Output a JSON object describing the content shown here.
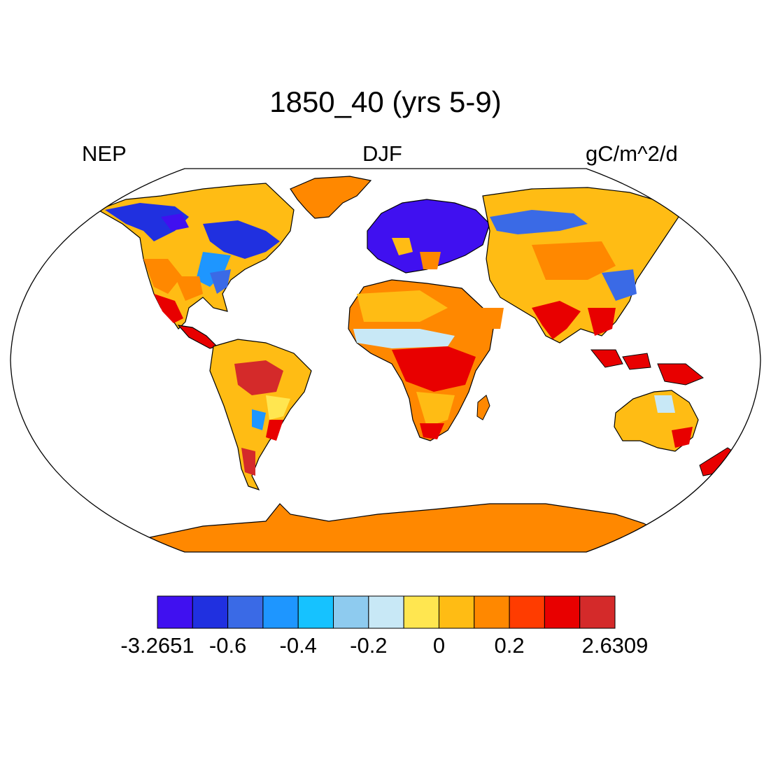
{
  "title": "1850_40 (yrs 5-9)",
  "left_string": "NEP",
  "center_string": "DJF",
  "right_string": "gC/m^2/d",
  "map": {
    "projection": "Robinson",
    "ocean_color": "#ffffff",
    "coastline_color": "#000000"
  },
  "colorbar": {
    "colors": [
      "#4010f0",
      "#2030e0",
      "#3a6ae6",
      "#1e96ff",
      "#16c2ff",
      "#8ecbef",
      "#c8e8f6",
      "#ffe650",
      "#ffbc14",
      "#ff8800",
      "#ff3c00",
      "#e80000",
      "#d42a2a"
    ],
    "labels": [
      {
        "text": "-3.2651",
        "boundary": 0
      },
      {
        "text": "-0.6",
        "boundary": 2
      },
      {
        "text": "-0.4",
        "boundary": 4
      },
      {
        "text": "-0.2",
        "boundary": 6
      },
      {
        "text": "0",
        "boundary": 8
      },
      {
        "text": "0.2",
        "boundary": 10
      },
      {
        "text": "2.6309",
        "boundary": 13
      }
    ]
  }
}
